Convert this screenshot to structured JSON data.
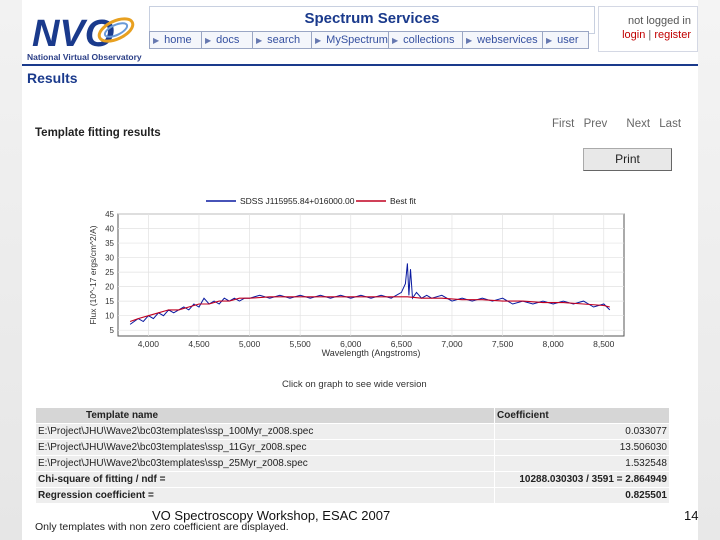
{
  "logo": {
    "text": "NVO",
    "subtitle": "National Virtual Observatory"
  },
  "banner": {
    "title": "Spectrum Services"
  },
  "nav": [
    {
      "label": "home"
    },
    {
      "label": "docs"
    },
    {
      "label": "search"
    },
    {
      "label": "MySpectrum"
    },
    {
      "label": "collections"
    },
    {
      "label": "webservices"
    },
    {
      "label": "user"
    }
  ],
  "login": {
    "status": "not logged in",
    "login": "login",
    "sep": "|",
    "register": "register"
  },
  "results_heading": "Results",
  "template_heading": "Template fitting results",
  "pager": {
    "first": "First",
    "prev": "Prev",
    "next": "Next",
    "last": "Last"
  },
  "print_label": "Print",
  "chart_data": {
    "type": "line",
    "title": "",
    "xlabel": "Wavelength (Angstroms)",
    "ylabel": "Flux (10^-17 ergs/cm^2/A)",
    "xlim": [
      3700,
      8700
    ],
    "ylim": [
      3,
      45
    ],
    "xticks": [
      4000,
      4500,
      5000,
      5500,
      6000,
      6500,
      7000,
      7500,
      8000,
      8500
    ],
    "xtick_labels": [
      "4,000",
      "4,500",
      "5,000",
      "5,500",
      "6,000",
      "6,500",
      "7,000",
      "7,500",
      "8,000",
      "8,500"
    ],
    "yticks": [
      5,
      10,
      15,
      20,
      25,
      30,
      35,
      40,
      45
    ],
    "grid": true,
    "legend": "top",
    "series": [
      {
        "name": "SDSS J115955.84+016000.00",
        "color": "#0a1aa0",
        "x": [
          3820,
          3900,
          3950,
          4000,
          4050,
          4100,
          4150,
          4200,
          4250,
          4300,
          4350,
          4400,
          4450,
          4500,
          4550,
          4600,
          4650,
          4700,
          4750,
          4800,
          4850,
          4900,
          4950,
          5000,
          5100,
          5200,
          5300,
          5400,
          5500,
          5600,
          5700,
          5800,
          5900,
          6000,
          6100,
          6200,
          6300,
          6400,
          6500,
          6540,
          6560,
          6575,
          6590,
          6610,
          6650,
          6700,
          6750,
          6800,
          6900,
          7000,
          7100,
          7200,
          7300,
          7400,
          7500,
          7600,
          7700,
          7800,
          7900,
          8000,
          8100,
          8200,
          8300,
          8400,
          8500,
          8560
        ],
        "y": [
          7,
          9,
          8,
          10,
          9,
          11,
          10,
          12,
          11,
          12,
          13,
          12,
          14,
          13,
          16,
          14,
          15,
          14,
          16,
          15,
          16,
          15,
          16,
          16,
          17,
          16,
          17,
          16,
          17,
          16,
          17,
          16,
          17,
          16,
          17,
          16,
          17,
          16,
          18,
          21,
          28,
          17,
          26,
          16,
          18,
          16,
          17,
          16,
          17,
          15,
          16,
          15,
          16,
          15,
          16,
          14,
          15,
          14,
          15,
          14,
          15,
          14,
          15,
          13,
          14,
          12
        ]
      },
      {
        "name": "Best fit",
        "color": "#c00020",
        "x": [
          3820,
          3900,
          4000,
          4100,
          4200,
          4300,
          4400,
          4500,
          4600,
          4700,
          4800,
          4900,
          5000,
          5200,
          5400,
          5600,
          5800,
          6000,
          6200,
          6400,
          6560,
          6700,
          6900,
          7100,
          7300,
          7500,
          7700,
          7900,
          8100,
          8300,
          8500,
          8560
        ],
        "y": [
          8,
          9,
          10,
          11,
          12,
          12,
          13,
          14,
          14,
          15,
          15,
          16,
          16,
          16.5,
          16.5,
          16.5,
          16.5,
          16.5,
          16.5,
          16.5,
          16.5,
          16,
          16,
          15.5,
          15.5,
          15,
          15,
          14.5,
          14.5,
          14,
          13.5,
          13
        ]
      }
    ]
  },
  "click_note": "Click on graph to see wide version",
  "table": {
    "headers": [
      "Template name",
      "Coefficient"
    ],
    "rows": [
      [
        "E:\\Project\\JHU\\Wave2\\bc03templates\\ssp_100Myr_z008.spec",
        "0.033077"
      ],
      [
        "E:\\Project\\JHU\\Wave2\\bc03templates\\ssp_11Gyr_z008.spec",
        "13.506030"
      ],
      [
        "E:\\Project\\JHU\\Wave2\\bc03templates\\ssp_25Myr_z008.spec",
        "1.532548"
      ]
    ],
    "summary": [
      [
        "Chi-square of fitting / ndf =",
        "10288.030303 / 3591 = 2.864949"
      ],
      [
        "Regression coefficient =",
        "0.825501"
      ]
    ]
  },
  "foot_note": "Only templates with non zero coefficient are displayed.",
  "slide_footer": "VO Spectroscopy Workshop, ESAC 2007",
  "page_number": "14"
}
